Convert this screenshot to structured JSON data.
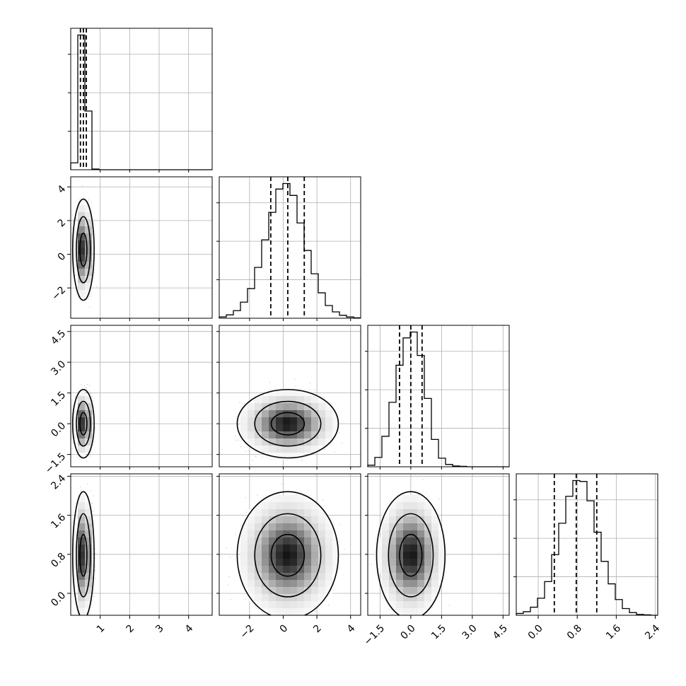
{
  "chart_data": {
    "type": "corner",
    "parameters": 4,
    "grid": true,
    "contour_levels": [
      0.39,
      0.86,
      0.99
    ],
    "ranges": [
      [
        0,
        4.8
      ],
      [
        -3.8,
        4.6
      ],
      [
        -2.1,
        4.8
      ],
      [
        -0.45,
        2.45
      ]
    ],
    "tick_labels": [
      [
        "1",
        "2",
        "3",
        "4"
      ],
      [
        "−2",
        "0",
        "2",
        "4"
      ],
      [
        "−1.5",
        "0.0",
        "1.5",
        "3.0",
        "4.5"
      ],
      [
        "0.0",
        "0.8",
        "1.6",
        "2.4"
      ]
    ],
    "tick_values": [
      [
        1,
        2,
        3,
        4
      ],
      [
        -2,
        0,
        2,
        4
      ],
      [
        -1.5,
        0,
        1.5,
        3.0,
        4.5
      ],
      [
        0,
        0.8,
        1.6,
        2.4
      ]
    ],
    "histograms": [
      {
        "param_index": 0,
        "bin_edges": [
          0,
          0.24,
          0.48,
          0.72,
          0.96,
          1.2,
          1.44,
          1.68,
          1.92,
          2.16,
          2.4,
          2.64,
          2.88,
          3.12,
          3.36,
          3.6,
          3.84,
          4.08,
          4.32,
          4.56,
          4.8
        ],
        "counts": [
          40,
          780,
          340,
          4,
          0,
          0,
          0,
          0,
          0,
          0,
          0,
          0,
          0,
          0,
          0,
          0,
          0,
          0,
          0,
          0
        ],
        "quantiles": [
          0.33,
          0.43,
          0.53
        ]
      },
      {
        "param_index": 1,
        "bin_edges": [
          -3.8,
          -3.38,
          -2.96,
          -2.54,
          -2.12,
          -1.7,
          -1.28,
          -0.86,
          -0.44,
          -0.02,
          0.4,
          0.82,
          1.24,
          1.66,
          2.08,
          2.5,
          2.92,
          3.34,
          3.76,
          4.18,
          4.6
        ],
        "counts": [
          3,
          8,
          18,
          38,
          70,
          120,
          185,
          250,
          305,
          318,
          290,
          225,
          160,
          105,
          60,
          30,
          15,
          7,
          3,
          1
        ],
        "quantiles": [
          -0.74,
          0.27,
          1.25
        ]
      },
      {
        "param_index": 2,
        "bin_edges": [
          -2.1,
          -1.755,
          -1.41,
          -1.065,
          -0.72,
          -0.375,
          -0.03,
          0.315,
          0.66,
          1.005,
          1.35,
          1.695,
          2.04,
          2.385,
          2.73,
          3.075,
          3.42,
          3.765,
          4.11,
          4.455,
          4.8
        ],
        "counts": [
          4,
          24,
          78,
          165,
          260,
          330,
          345,
          285,
          175,
          70,
          22,
          6,
          2,
          1,
          0,
          0,
          0,
          0,
          0,
          0
        ],
        "quantiles": [
          -0.55,
          0.0,
          0.55
        ]
      },
      {
        "param_index": 3,
        "bin_edges": [
          -0.45,
          -0.305,
          -0.16,
          -0.015,
          0.13,
          0.275,
          0.42,
          0.565,
          0.71,
          0.855,
          1.0,
          1.145,
          1.29,
          1.435,
          1.58,
          1.725,
          1.87,
          2.015,
          2.16,
          2.305,
          2.45
        ],
        "counts": [
          4,
          8,
          18,
          38,
          75,
          135,
          205,
          265,
          300,
          298,
          255,
          185,
          120,
          70,
          35,
          15,
          6,
          2,
          1,
          0
        ],
        "quantiles": [
          0.33,
          0.78,
          1.2
        ]
      }
    ],
    "pairs": [
      {
        "x_param": 0,
        "y_param": 1,
        "mean": [
          0.43,
          0.27
        ],
        "std": [
          0.12,
          0.99
        ],
        "rho": 0.0
      },
      {
        "x_param": 0,
        "y_param": 2,
        "mean": [
          0.43,
          0.0
        ],
        "std": [
          0.12,
          0.55
        ],
        "rho": 0.0
      },
      {
        "x_param": 0,
        "y_param": 3,
        "mean": [
          0.43,
          0.78
        ],
        "std": [
          0.12,
          0.43
        ],
        "rho": 0.0
      },
      {
        "x_param": 1,
        "y_param": 2,
        "mean": [
          0.27,
          0.0
        ],
        "std": [
          0.99,
          0.55
        ],
        "rho": 0.0
      },
      {
        "x_param": 1,
        "y_param": 3,
        "mean": [
          0.27,
          0.78
        ],
        "std": [
          0.99,
          0.43
        ],
        "rho": 0.0
      },
      {
        "x_param": 2,
        "y_param": 3,
        "mean": [
          0.0,
          0.78
        ],
        "std": [
          0.55,
          0.43
        ],
        "rho": 0.0
      }
    ]
  }
}
